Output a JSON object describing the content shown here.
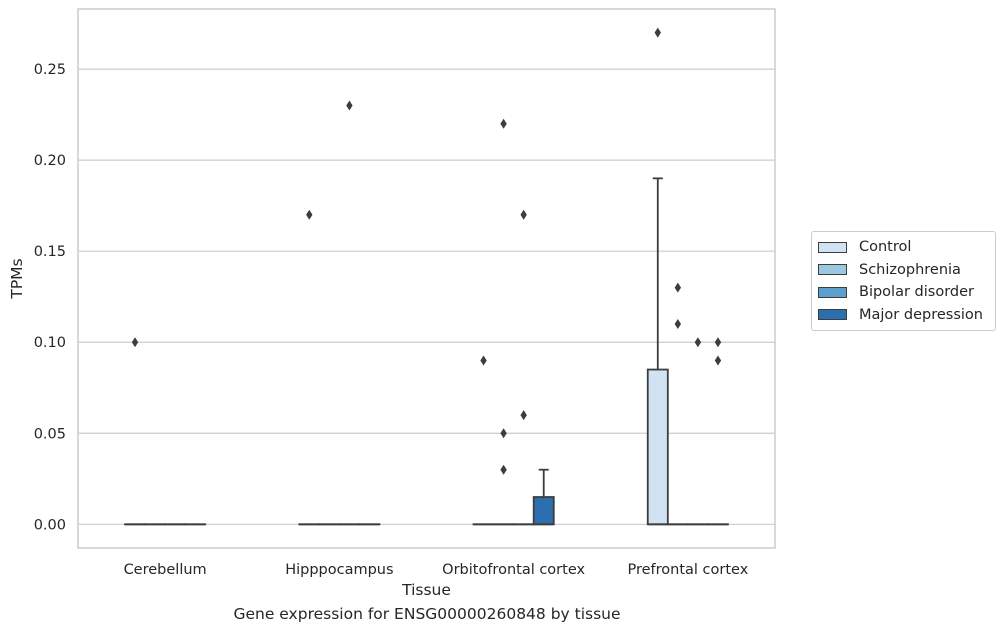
{
  "caption": "Gene expression for ENSG00000260848 by tissue",
  "chart_data": {
    "type": "box",
    "xlabel": "Tissue",
    "ylabel": "TPMs",
    "ylim": [
      -0.013,
      0.283
    ],
    "yticks": [
      0.0,
      0.05,
      0.1,
      0.15,
      0.2,
      0.25
    ],
    "ytick_labels": [
      "0.00",
      "0.05",
      "0.10",
      "0.15",
      "0.20",
      "0.25"
    ],
    "grid": "horizontal",
    "legend_position": "right",
    "categories": [
      "Cerebellum",
      "Hipppocampus",
      "Orbitofrontal cortex",
      "Prefrontal cortex"
    ],
    "series": [
      {
        "name": "Control",
        "color": "#d1e2f2",
        "boxes": [
          {
            "q1": 0,
            "median": 0,
            "q3": 0,
            "whislo": 0,
            "whishi": 0,
            "fliers": [
              0.1
            ]
          },
          {
            "q1": 0,
            "median": 0,
            "q3": 0,
            "whislo": 0,
            "whishi": 0,
            "fliers": [
              0.17
            ]
          },
          {
            "q1": 0,
            "median": 0,
            "q3": 0,
            "whislo": 0,
            "whishi": 0,
            "fliers": [
              0.09
            ]
          },
          {
            "q1": 0,
            "median": 0,
            "q3": 0.085,
            "whislo": 0,
            "whishi": 0.19,
            "fliers": [
              0.27
            ]
          }
        ]
      },
      {
        "name": "Schizophrenia",
        "color": "#9ac8e0",
        "boxes": [
          {
            "q1": 0,
            "median": 0,
            "q3": 0,
            "whislo": 0,
            "whishi": 0,
            "fliers": []
          },
          {
            "q1": 0,
            "median": 0,
            "q3": 0,
            "whislo": 0,
            "whishi": 0,
            "fliers": []
          },
          {
            "q1": 0,
            "median": 0,
            "q3": 0,
            "whislo": 0,
            "whishi": 0,
            "fliers": [
              0.22,
              0.05,
              0.03
            ]
          },
          {
            "q1": 0,
            "median": 0,
            "q3": 0,
            "whislo": 0,
            "whishi": 0,
            "fliers": [
              0.13,
              0.11
            ]
          }
        ]
      },
      {
        "name": "Bipolar disorder",
        "color": "#5a9fcd",
        "boxes": [
          {
            "q1": 0,
            "median": 0,
            "q3": 0,
            "whislo": 0,
            "whishi": 0,
            "fliers": []
          },
          {
            "q1": 0,
            "median": 0,
            "q3": 0,
            "whislo": 0,
            "whishi": 0,
            "fliers": [
              0.23
            ]
          },
          {
            "q1": 0,
            "median": 0,
            "q3": 0,
            "whislo": 0,
            "whishi": 0,
            "fliers": [
              0.17,
              0.06
            ]
          },
          {
            "q1": 0,
            "median": 0,
            "q3": 0,
            "whislo": 0,
            "whishi": 0,
            "fliers": [
              0.1
            ]
          }
        ]
      },
      {
        "name": "Major depression",
        "color": "#2c6fb0",
        "boxes": [
          {
            "q1": 0,
            "median": 0,
            "q3": 0,
            "whislo": 0,
            "whishi": 0,
            "fliers": []
          },
          {
            "q1": 0,
            "median": 0,
            "q3": 0,
            "whislo": 0,
            "whishi": 0,
            "fliers": []
          },
          {
            "q1": 0,
            "median": 0,
            "q3": 0.015,
            "whislo": 0,
            "whishi": 0.03,
            "fliers": []
          },
          {
            "q1": 0,
            "median": 0,
            "q3": 0,
            "whislo": 0,
            "whishi": 0,
            "fliers": [
              0.1,
              0.09
            ]
          }
        ]
      }
    ]
  }
}
